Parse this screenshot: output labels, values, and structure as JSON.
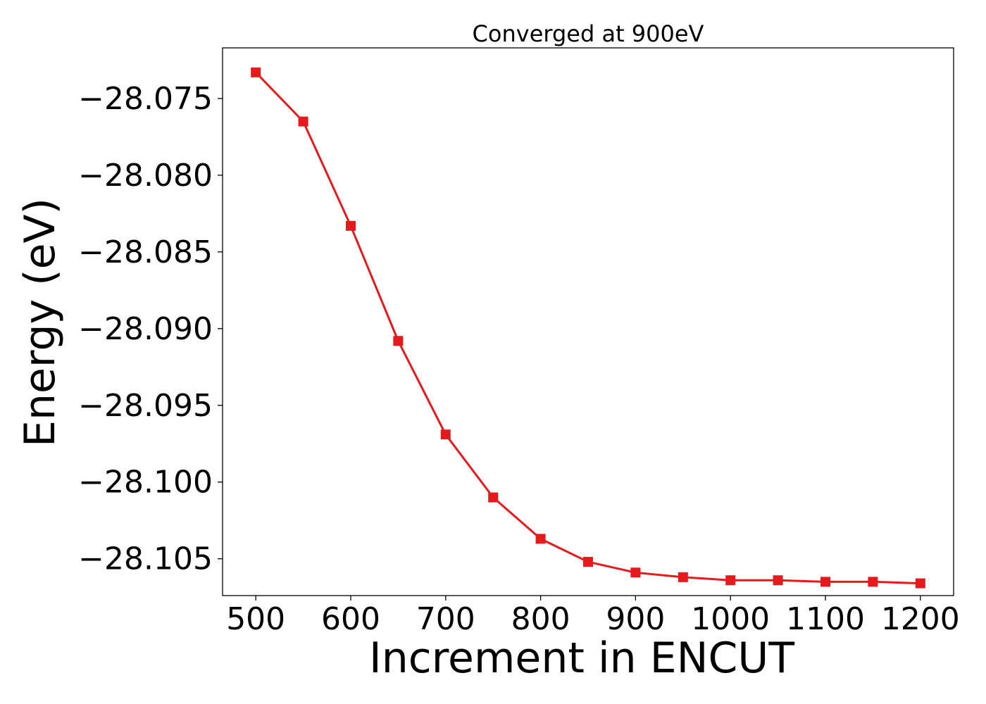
{
  "chart_data": {
    "type": "line",
    "title": "Converged at 900eV",
    "xlabel": "Increment in ENCUT",
    "ylabel": "Energy (eV)",
    "xlim": [
      465,
      1235
    ],
    "ylim": [
      -28.1074,
      -28.0717
    ],
    "grid": false,
    "legend": "none",
    "color": "#e41a1c",
    "marker": "square",
    "x_ticks": [
      500,
      600,
      700,
      800,
      900,
      1000,
      1100,
      1200
    ],
    "x_tick_labels": [
      "500",
      "600",
      "700",
      "800",
      "900",
      "1000",
      "1100",
      "1200"
    ],
    "y_ticks": [
      -28.075,
      -28.08,
      -28.085,
      -28.09,
      -28.095,
      -28.1,
      -28.105
    ],
    "y_tick_labels": [
      "−28.075",
      "−28.080",
      "−28.085",
      "−28.090",
      "−28.095",
      "−28.100",
      "−28.105"
    ],
    "series": [
      {
        "x": [
          500,
          550,
          600,
          650,
          700,
          750,
          800,
          850,
          900,
          950,
          1000,
          1050,
          1100,
          1150,
          1200
        ],
        "values": [
          -28.0733,
          -28.0765,
          -28.0833,
          -28.0908,
          -28.0969,
          -28.101,
          -28.1037,
          -28.1052,
          -28.1059,
          -28.1062,
          -28.1064,
          -28.1064,
          -28.1065,
          -28.1065,
          -28.1066
        ]
      }
    ]
  }
}
